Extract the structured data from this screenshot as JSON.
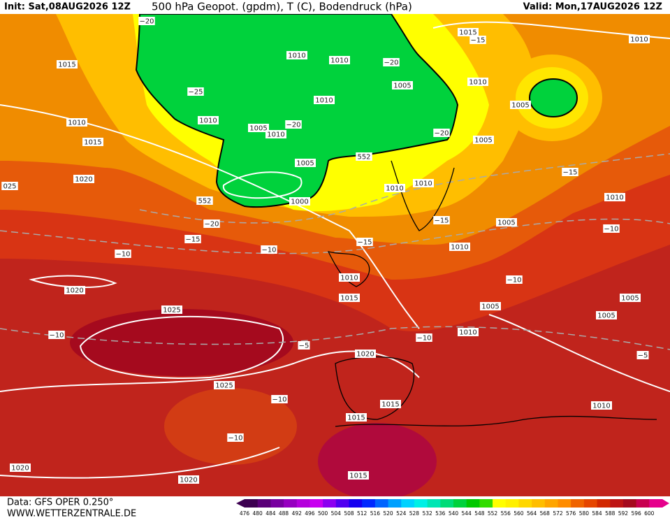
{
  "header": {
    "init": "Init: Sat,08AUG2026 12Z",
    "title": "500 hPa Geopot. (gpdm), T (C), Bodendruck (hPa)",
    "valid": "Valid: Mon,17AUG2026 12Z"
  },
  "footer": {
    "source": "Data: GFS OPER 0.250°",
    "site": "WWW.WETTERZENTRALE.DE"
  },
  "colorbar": {
    "labels": [
      "476",
      "480",
      "484",
      "488",
      "492",
      "496",
      "500",
      "504",
      "508",
      "512",
      "516",
      "520",
      "524",
      "528",
      "532",
      "536",
      "540",
      "544",
      "548",
      "552",
      "556",
      "560",
      "564",
      "568",
      "572",
      "576",
      "580",
      "584",
      "588",
      "592",
      "596",
      "600"
    ],
    "colors": [
      "#3c0050",
      "#5a0078",
      "#7800a0",
      "#9600c0",
      "#b400dc",
      "#c800f0",
      "#8c00f0",
      "#5000f0",
      "#1400f0",
      "#0028ff",
      "#0064ff",
      "#00a0ff",
      "#00d2ff",
      "#00f0e6",
      "#00e6b4",
      "#00dc78",
      "#00d23c",
      "#00c800",
      "#32dc00",
      "#ffff00",
      "#fff000",
      "#ffd700",
      "#ffbe00",
      "#ffa500",
      "#ff8c00",
      "#f06400",
      "#e64600",
      "#d22800",
      "#be1414",
      "#a50a1e",
      "#c80050",
      "#e6008c"
    ]
  },
  "map_labels": [
    "−20",
    "1015",
    "−15",
    "1010",
    "1015",
    "1010",
    "1010",
    "−20",
    "1010",
    "1005",
    "−25",
    "1005",
    "1010",
    "1010",
    "1010",
    "1005",
    "1010",
    "−20",
    "−20",
    "1005",
    "1015",
    "552",
    "1005",
    "−15",
    "1020",
    "1010",
    "1010",
    "1000",
    "552",
    "1010",
    "−20",
    "−15",
    "1005",
    "−10",
    "−15",
    "−15",
    "−10",
    "1010",
    "−10",
    "1020",
    "1010",
    "1015",
    "−10",
    "1005",
    "1005",
    "1025",
    "1005",
    "1010",
    "−10",
    "−10",
    "−5",
    "1020",
    "−5",
    "1025",
    "−10",
    "1015",
    "1010",
    "1015",
    "−10",
    "1020",
    "1015",
    "1020",
    "025"
  ]
}
